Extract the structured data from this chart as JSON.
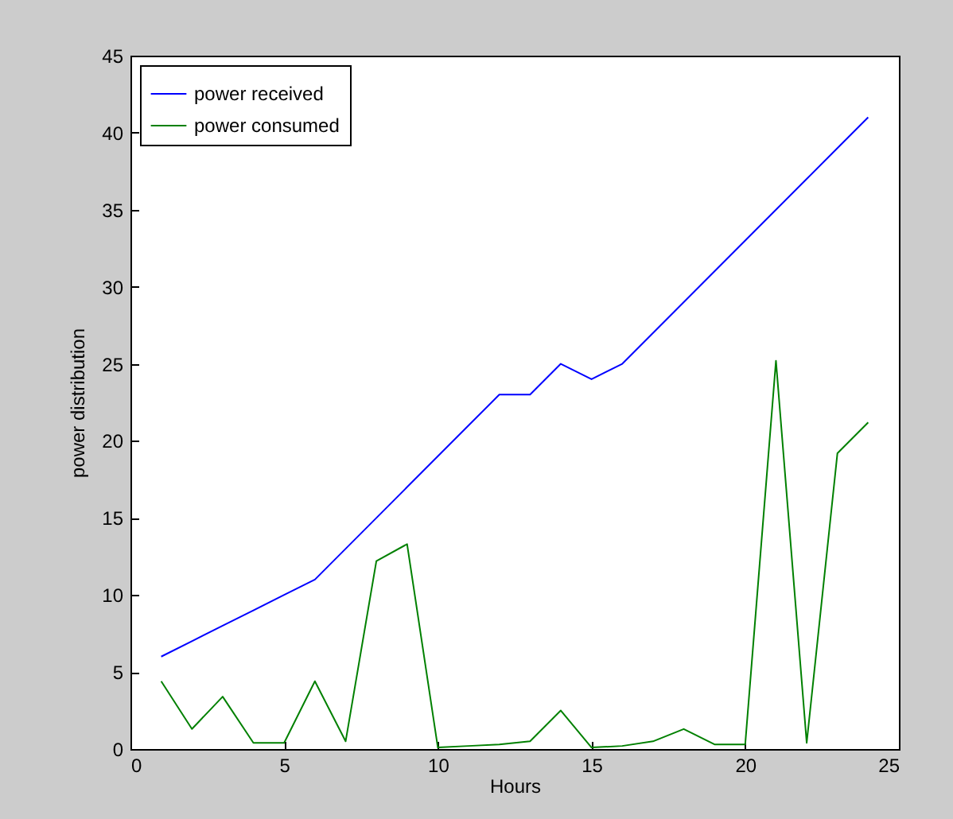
{
  "chart_data": {
    "type": "line",
    "xlabel": "Hours",
    "ylabel": "power distribution",
    "x": [
      1,
      2,
      3,
      4,
      5,
      6,
      7,
      8,
      9,
      10,
      11,
      12,
      13,
      14,
      15,
      16,
      17,
      18,
      19,
      20,
      21,
      22,
      23,
      24
    ],
    "series": [
      {
        "name": "power received",
        "color": "#0000ff",
        "values": [
          6,
          7,
          8,
          9,
          10,
          11,
          13,
          15,
          17,
          19,
          21,
          23,
          23,
          25,
          24,
          25,
          27,
          29,
          31,
          33,
          35,
          37,
          39,
          41
        ]
      },
      {
        "name": "power consumed",
        "color": "#008000",
        "values": [
          4.4,
          1.3,
          3.4,
          0.4,
          0.4,
          4.4,
          0.5,
          12.2,
          13.3,
          0.1,
          0.2,
          0.3,
          0.5,
          2.5,
          0.1,
          0.2,
          0.5,
          1.3,
          0.3,
          0.3,
          25.2,
          0.4,
          19.2,
          21.2
        ]
      }
    ],
    "xlim": [
      0,
      25
    ],
    "xticks": [
      0,
      5,
      10,
      15,
      20,
      25
    ],
    "ylim": [
      0,
      45
    ],
    "yticks": [
      0,
      5,
      10,
      15,
      20,
      25,
      30,
      35,
      40,
      45
    ],
    "legend": "top left",
    "grid": false,
    "line_style": "solid"
  }
}
